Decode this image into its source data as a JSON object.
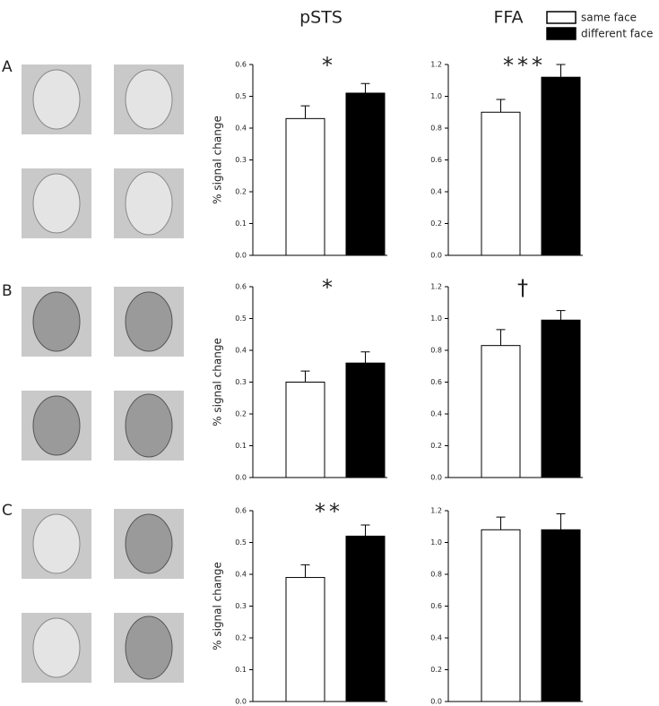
{
  "column_titles": [
    "pSTS",
    "FFA"
  ],
  "row_labels": [
    "A",
    "B",
    "C"
  ],
  "legend": [
    {
      "name": "same face",
      "color": "#ffffff"
    },
    {
      "name": "different face",
      "color": "#000000"
    }
  ],
  "chart_data": [
    {
      "type": "bar",
      "ylabel": "% signal change",
      "values": [
        0.43,
        0.51
      ],
      "errors": [
        0.04,
        0.03
      ],
      "annotation": "*",
      "ylim": [
        0,
        0.6
      ],
      "yticks": [
        {
          "value": 0,
          "label": "0.0"
        },
        0.1,
        0.2,
        0.3,
        0.4,
        0.5,
        0.6
      ]
    },
    {
      "type": "bar",
      "values": [
        0.9,
        1.12
      ],
      "errors": [
        0.08,
        0.08
      ],
      "annotation": "***",
      "ylim": [
        0,
        1.2
      ],
      "yticks": [
        {
          "value": 0,
          "label": "0.0"
        },
        0.2,
        0.4,
        0.6,
        0.8,
        {
          "value": 1,
          "label": "1.0"
        },
        1.2
      ]
    },
    {
      "type": "bar",
      "ylabel": "% signal change",
      "values": [
        0.3,
        0.36
      ],
      "errors": [
        0.035,
        0.035
      ],
      "annotation": "*",
      "ylim": [
        0,
        0.6
      ],
      "yticks": [
        {
          "value": 0,
          "label": "0.0"
        },
        0.1,
        0.2,
        0.3,
        0.4,
        0.5,
        0.6
      ]
    },
    {
      "type": "bar",
      "values": [
        0.83,
        0.99
      ],
      "errors": [
        0.1,
        0.06
      ],
      "annotation": "†",
      "ylim": [
        0,
        1.2
      ],
      "yticks": [
        {
          "value": 0,
          "label": "0.0"
        },
        0.2,
        0.4,
        0.6,
        0.8,
        {
          "value": 1,
          "label": "1.0"
        },
        1.2
      ]
    },
    {
      "type": "bar",
      "ylabel": "% signal change",
      "values": [
        0.39,
        0.52
      ],
      "errors": [
        0.04,
        0.035
      ],
      "annotation": "**",
      "ylim": [
        0,
        0.6
      ],
      "yticks": [
        {
          "value": 0,
          "label": "0.0"
        },
        0.1,
        0.2,
        0.3,
        0.4,
        0.5,
        0.6
      ]
    },
    {
      "type": "bar",
      "values": [
        1.08,
        1.08
      ],
      "errors": [
        0.08,
        0.1
      ],
      "ylim": [
        0,
        1.2
      ],
      "yticks": [
        {
          "value": 0,
          "label": "0.0"
        },
        0.2,
        0.4,
        0.6,
        0.8,
        {
          "value": 1,
          "label": "1.0"
        },
        1.2
      ]
    }
  ]
}
